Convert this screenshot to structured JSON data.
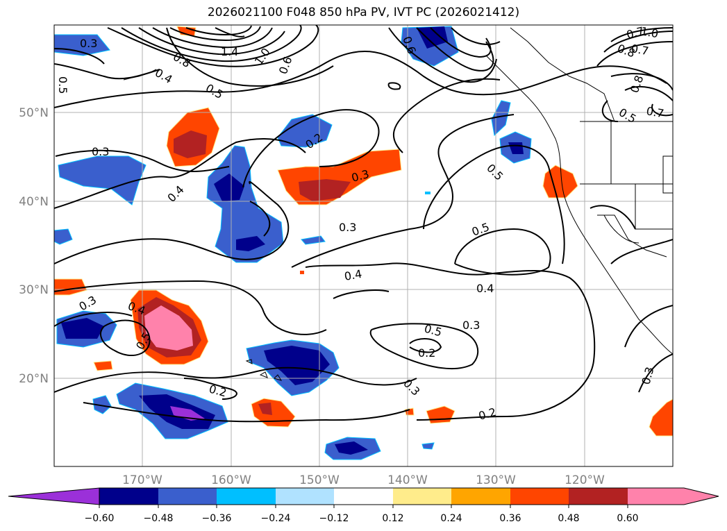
{
  "title": "2026021100 F048 850 hPa PV, IVT PC (2026021412)",
  "axes": {
    "lon_ticks": [
      "170°W",
      "160°W",
      "150°W",
      "140°W",
      "130°W",
      "120°W"
    ],
    "lat_ticks": [
      "50°N",
      "40°N",
      "30°N",
      "20°N"
    ],
    "tick_color": "#808080"
  },
  "colorbar": {
    "tick_labels": [
      "−0.60",
      "−0.48",
      "−0.36",
      "−0.24",
      "−0.12",
      "0.12",
      "0.24",
      "0.36",
      "0.48",
      "0.60"
    ],
    "colors": [
      "#9b30d9",
      "#00008b",
      "#3a5fcd",
      "#00bfff",
      "#b0e2ff",
      "#ffffff",
      "#ffec8b",
      "#ffa500",
      "#ff4500",
      "#b22222",
      "#ff82ab"
    ]
  },
  "contour_labels": [
    "0.3",
    "0.4",
    "0.5",
    "0.2",
    "0.8",
    "1.4",
    "1.0",
    "0.6",
    "0.7",
    "0.5",
    "0.3",
    "0.4",
    "0.2",
    "0.3",
    "0.5",
    "0.3",
    "0.4",
    "0.5",
    "0.4",
    "0.3",
    "0.4",
    "0.5",
    "0.2",
    "0.3",
    "0.2",
    "0.3",
    "0.5",
    "0.8",
    "0.7",
    "1.0",
    "0.8",
    "0.7",
    "0.6",
    "0.3",
    "0.5"
  ]
}
